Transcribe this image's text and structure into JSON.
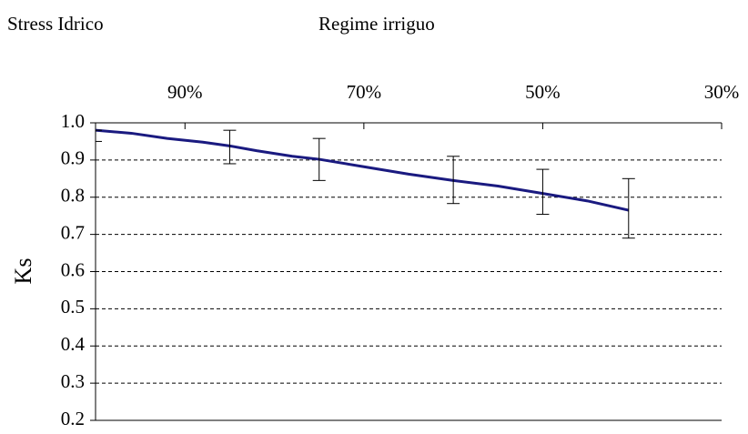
{
  "chart_data": {
    "type": "line",
    "corner_label": "Stress Idrico",
    "x_label": "Regime irriguo",
    "y_label": "Ks",
    "xlim": [
      100,
      30
    ],
    "xticks": [
      {
        "value": 90,
        "label": "90%"
      },
      {
        "value": 70,
        "label": "70%"
      },
      {
        "value": 50,
        "label": "50%"
      },
      {
        "value": 30,
        "label": "30%"
      }
    ],
    "ylim": [
      0.2,
      1.0
    ],
    "yticks": [
      {
        "value": 1,
        "label": "1.0"
      },
      0.9,
      0.8,
      0.7,
      0.6,
      0.5,
      0.4,
      0.3,
      0.2
    ],
    "grid": true,
    "series": [
      {
        "color": "#1a1a80",
        "x": [
          100,
          96,
          92,
          88,
          85,
          82,
          78,
          75,
          70,
          65,
          60,
          55,
          50,
          45,
          40.4
        ],
        "values": [
          0.98,
          0.972,
          0.958,
          0.948,
          0.938,
          0.925,
          0.91,
          0.902,
          0.882,
          0.862,
          0.845,
          0.83,
          0.81,
          0.79,
          0.765
        ]
      }
    ],
    "errorbars": {
      "x": [
        100,
        85,
        75,
        60,
        50,
        40.4
      ],
      "low": [
        0.95,
        0.89,
        0.845,
        0.783,
        0.754,
        0.69
      ],
      "high": [
        0.98,
        0.98,
        0.958,
        0.91,
        0.875,
        0.85
      ]
    }
  }
}
